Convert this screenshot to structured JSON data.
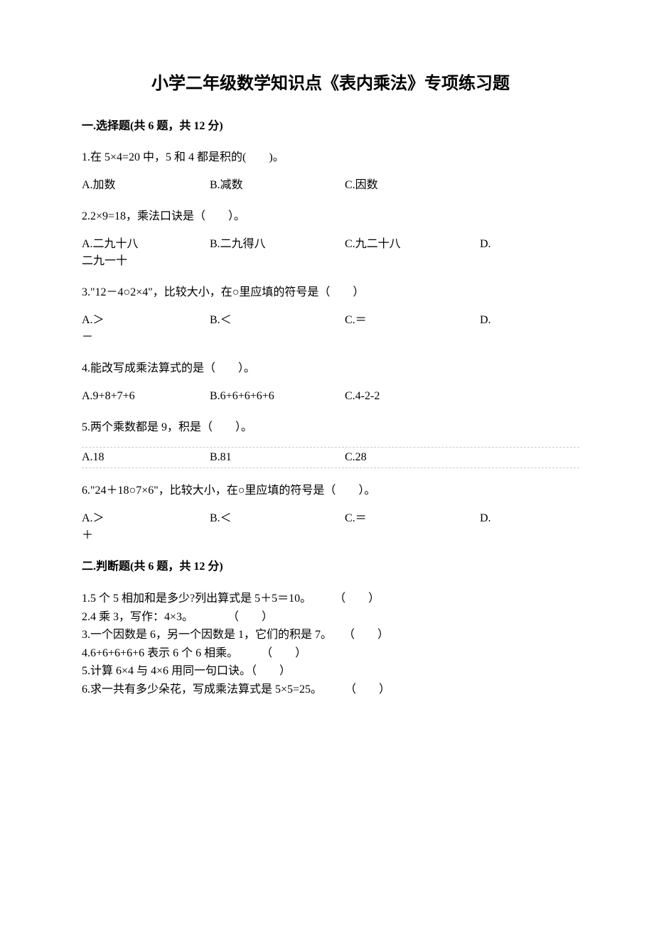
{
  "title": "小学二年级数学知识点《表内乘法》专项练习题",
  "section1": {
    "header": "一.选择题(共 6 题，共 12 分)",
    "questions": {
      "q1": {
        "text": "1.在 5×4=20 中，5 和 4 都是积的(　　)。",
        "optA": "A.加数",
        "optB": "B.减数",
        "optC": "C.因数"
      },
      "q2": {
        "text": "2.2×9=18，乘法口诀是（　　）。",
        "optA": "A.二九十八",
        "optB": "B.二九得八",
        "optC": "C.九二十八",
        "optD": "D.",
        "optDContent": "二九一十"
      },
      "q3": {
        "text": "3.\"12－4○2×4\"，比较大小，在○里应填的符号是（　　）",
        "optA": "A.＞",
        "optB": "B.＜",
        "optC": "C.＝",
        "optD": "D.",
        "optDContent": "－"
      },
      "q4": {
        "text": "4.能改写成乘法算式的是（　　）。",
        "optA": "A.9+8+7+6",
        "optB": "B.6+6+6+6+6",
        "optC": "C.4-2-2"
      },
      "q5": {
        "text": "5.两个乘数都是 9，积是（　　）。",
        "optA": "A.18",
        "optB": "B.81",
        "optC": "C.28"
      },
      "q6": {
        "text": "6.\"24＋18○7×6\"，比较大小，在○里应填的符号是（　　）。",
        "optA": "A.＞",
        "optB": "B.＜",
        "optC": "C.＝",
        "optD": "D.",
        "optDContent": "＋"
      }
    }
  },
  "section2": {
    "header": "二.判断题(共 6 题，共 12 分)",
    "items": {
      "j1": "1.5 个 5 相加和是多少?列出算式是 5＋5＝10。　　　（　　）",
      "j2": "2.4 乘 3，写作：4×3。　　　　（　　）",
      "j3": "3.一个因数是 6，另一个因数是 1，它们的积是 7。　　（　　）",
      "j4": "4.6+6+6+6+6 表示 6 个 6 相乘。　　　（　　）",
      "j5": "5.计算 6×4 与 4×6 用同一句口诀。（　　）",
      "j6": "6.求一共有多少朵花，写成乘法算式是 5×5=25。　　　（　　）"
    }
  }
}
